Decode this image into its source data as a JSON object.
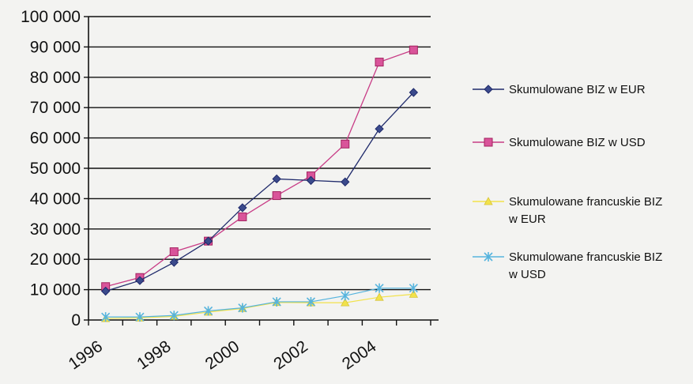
{
  "chart_data": {
    "type": "line",
    "title": "",
    "xlabel": "",
    "ylabel": "",
    "x": [
      1996.5,
      1997.5,
      1998.5,
      1999.5,
      2000.5,
      2001.5,
      2002.5,
      2003.5,
      2004.5,
      2005.5
    ],
    "x_ticks": [
      1996,
      1998,
      2000,
      2002,
      2004
    ],
    "x_tick_labels": [
      "1996",
      "1998",
      "2000",
      "2002",
      "2004"
    ],
    "xlim": [
      1996,
      2006
    ],
    "ylim": [
      0,
      100000
    ],
    "y_ticks": [
      0,
      10000,
      20000,
      30000,
      40000,
      50000,
      60000,
      70000,
      80000,
      90000,
      100000
    ],
    "y_tick_labels": [
      "0",
      "10 000",
      "20 000",
      "30 000",
      "40 000",
      "50 000",
      "60 000",
      "70 000",
      "80 000",
      "90 000",
      "100 000"
    ],
    "grid": "horizontal",
    "legend_position": "right",
    "series": [
      {
        "name": "Skumulowane BIZ w EUR",
        "name_lines": [
          "Skumulowane BIZ w EUR"
        ],
        "color": "#1f2a6b",
        "marker": "diamond",
        "values": [
          9500,
          13000,
          19000,
          26000,
          37000,
          46500,
          46000,
          45500,
          63000,
          75000
        ]
      },
      {
        "name": "Skumulowane BIZ w USD",
        "name_lines": [
          "Skumulowane BIZ w USD"
        ],
        "color": "#c83c86",
        "marker": "square",
        "values": [
          11000,
          14000,
          22500,
          26000,
          34000,
          41000,
          47500,
          58000,
          85000,
          89000
        ]
      },
      {
        "name": "Skumulowane francuskie BIZ w EUR",
        "name_lines": [
          "Skumulowane francuskie BIZ",
          "w EUR"
        ],
        "color": "#f2e24a",
        "marker": "triangle",
        "values": [
          500,
          700,
          1200,
          2600,
          3800,
          5800,
          5700,
          5700,
          7500,
          8500
        ]
      },
      {
        "name": "Skumulowane francuskie BIZ w USD",
        "name_lines": [
          "Skumulowane francuskie BIZ",
          "w USD"
        ],
        "color": "#56b4de",
        "marker": "x",
        "values": [
          1000,
          1000,
          1500,
          3000,
          4000,
          6000,
          6000,
          8000,
          10500,
          10500
        ]
      }
    ]
  }
}
